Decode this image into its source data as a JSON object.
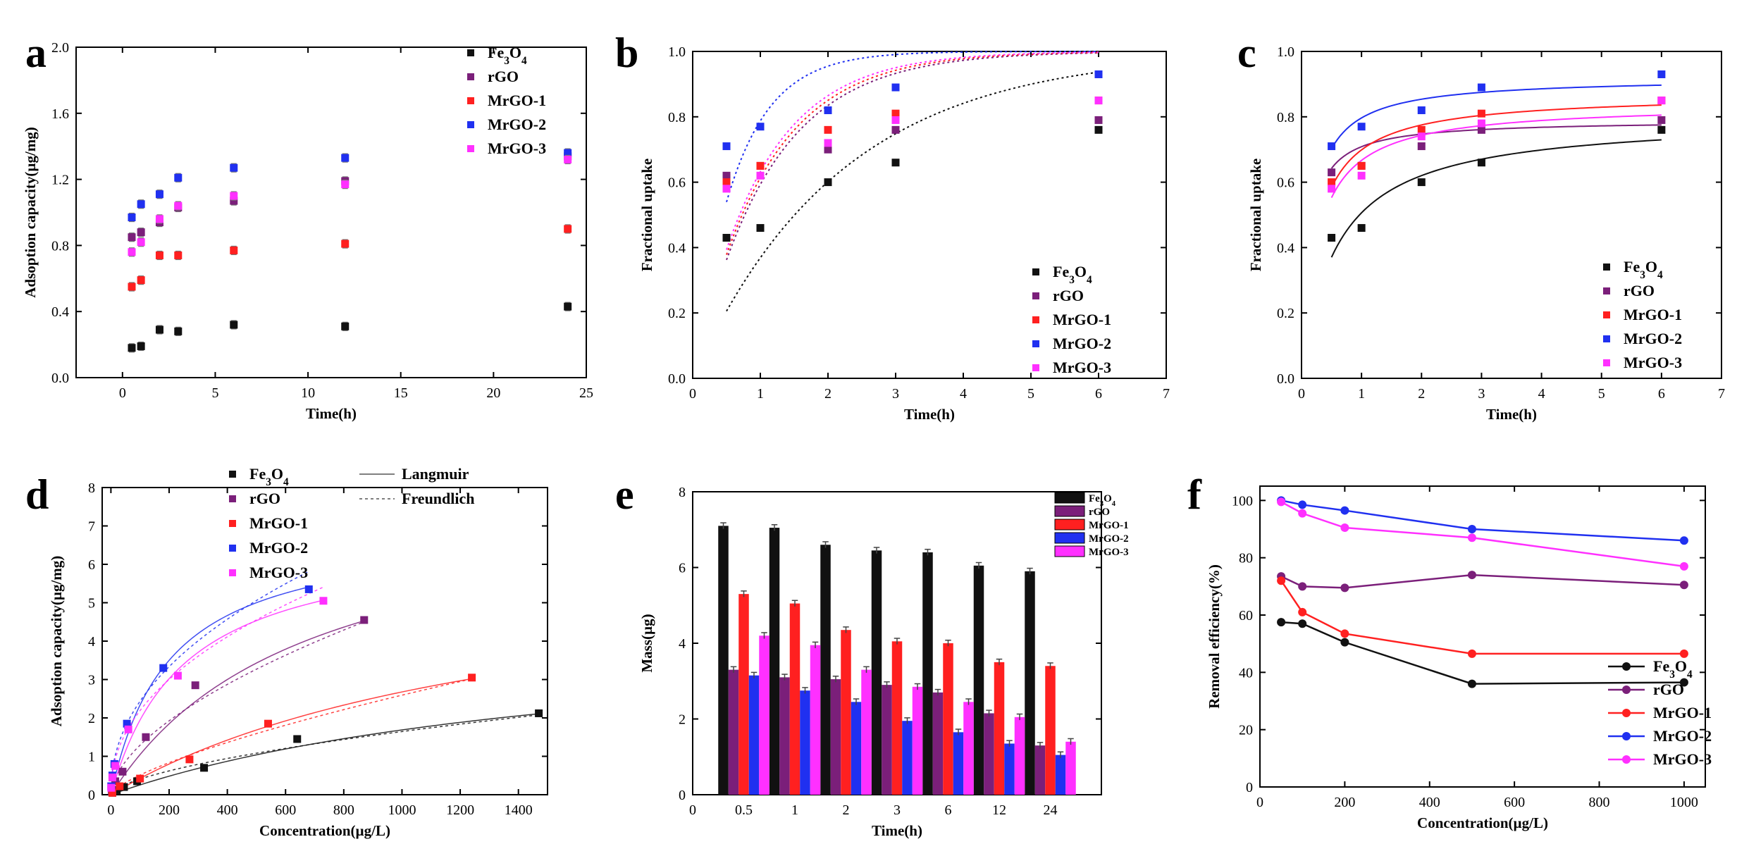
{
  "colors": {
    "Fe3O4": "#111111",
    "rGO": "#7b1f7a",
    "MrGO-1": "#ff2020",
    "MrGO-2": "#2030f0",
    "MrGO-3": "#ff30ff"
  },
  "chart_data": [
    {
      "id": "a",
      "panel": "a",
      "type": "scatter",
      "xlabel": "Time(h)",
      "ylabel": "Adsoption capacity(µg/mg)",
      "xlim": [
        -2.5,
        25
      ],
      "ylim": [
        0,
        2.0
      ],
      "xticks": [
        0,
        5,
        10,
        15,
        20,
        25
      ],
      "yticks": [
        0.0,
        0.4,
        0.8,
        1.2,
        1.6,
        2.0
      ],
      "ytick_decimals": 1,
      "error_bars": true,
      "legend": "top-right",
      "x": [
        0.5,
        1,
        2,
        3,
        6,
        12,
        24
      ],
      "series": [
        {
          "name": "Fe3O4",
          "values": [
            0.18,
            0.19,
            0.29,
            0.28,
            0.32,
            0.31,
            0.43
          ]
        },
        {
          "name": "rGO",
          "values": [
            0.85,
            0.88,
            0.94,
            1.03,
            1.07,
            1.19,
            1.34
          ]
        },
        {
          "name": "MrGO-1",
          "values": [
            0.55,
            0.59,
            0.74,
            0.74,
            0.77,
            0.81,
            0.9
          ]
        },
        {
          "name": "MrGO-2",
          "values": [
            0.97,
            1.05,
            1.11,
            1.21,
            1.27,
            1.33,
            1.36
          ]
        },
        {
          "name": "MrGO-3",
          "values": [
            0.76,
            0.82,
            0.96,
            1.04,
            1.1,
            1.17,
            1.32
          ]
        }
      ]
    },
    {
      "id": "b",
      "panel": "b",
      "type": "scatter",
      "xlabel": "Time(h)",
      "ylabel": "Fractional uptake",
      "xlim": [
        0,
        7
      ],
      "ylim": [
        0,
        1.0
      ],
      "xticks": [
        0,
        1,
        2,
        3,
        4,
        5,
        6,
        7
      ],
      "yticks": [
        0.0,
        0.2,
        0.4,
        0.6,
        0.8,
        1.0
      ],
      "ytick_decimals": 1,
      "legend": "bottom-right",
      "fit": "pseudo-first-order (dotted)",
      "x": [
        0.5,
        1,
        2,
        3,
        6
      ],
      "series": [
        {
          "name": "Fe3O4",
          "values": [
            0.43,
            0.46,
            0.6,
            0.66,
            0.76
          ],
          "fit_k": 0.46
        },
        {
          "name": "rGO",
          "values": [
            0.62,
            0.65,
            0.7,
            0.76,
            0.79
          ],
          "fit_k": 0.9
        },
        {
          "name": "MrGO-1",
          "values": [
            0.6,
            0.65,
            0.76,
            0.81,
            0.85
          ],
          "fit_k": 0.95
        },
        {
          "name": "MrGO-2",
          "values": [
            0.71,
            0.77,
            0.82,
            0.89,
            0.93
          ],
          "fit_k": 1.55
        },
        {
          "name": "MrGO-3",
          "values": [
            0.58,
            0.62,
            0.72,
            0.79,
            0.85
          ],
          "fit_k": 1.0
        }
      ]
    },
    {
      "id": "c",
      "panel": "c",
      "type": "scatter",
      "xlabel": "Time(h)",
      "ylabel": "Fractional uptake",
      "xlim": [
        0,
        7
      ],
      "ylim": [
        0,
        1.0
      ],
      "xticks": [
        0,
        1,
        2,
        3,
        4,
        5,
        6,
        7
      ],
      "yticks": [
        0.0,
        0.2,
        0.4,
        0.6,
        0.8,
        1.0
      ],
      "ytick_decimals": 1,
      "legend": "bottom-right",
      "fit": "pseudo-second-order (solid)",
      "x": [
        0.5,
        1,
        2,
        3,
        6
      ],
      "series": [
        {
          "name": "Fe3O4",
          "values": [
            0.43,
            0.46,
            0.6,
            0.66,
            0.76
          ],
          "fit": {
            "a": 0.8,
            "b": 0.58
          }
        },
        {
          "name": "rGO",
          "values": [
            0.63,
            0.65,
            0.71,
            0.76,
            0.79
          ],
          "fit": {
            "a": 0.79,
            "b": 0.115
          }
        },
        {
          "name": "MrGO-1",
          "values": [
            0.6,
            0.65,
            0.76,
            0.81,
            0.85
          ],
          "fit": {
            "a": 0.87,
            "b": 0.245
          }
        },
        {
          "name": "MrGO-2",
          "values": [
            0.71,
            0.77,
            0.82,
            0.89,
            0.93
          ],
          "fit": {
            "a": 0.92,
            "b": 0.155
          }
        },
        {
          "name": "MrGO-3",
          "values": [
            0.58,
            0.62,
            0.74,
            0.78,
            0.85
          ],
          "fit": {
            "a": 0.84,
            "b": 0.26
          }
        }
      ]
    },
    {
      "id": "d",
      "panel": "d",
      "type": "scatter",
      "xlabel": "Concentration(µg/L)",
      "ylabel": "Adsoption capacity(µg/mg)",
      "xlim": [
        -30,
        1500
      ],
      "ylim": [
        0,
        8
      ],
      "xticks": [
        0,
        200,
        400,
        600,
        800,
        1000,
        1200,
        1400
      ],
      "yticks": [
        0,
        1,
        2,
        3,
        4,
        5,
        6,
        7,
        8
      ],
      "ytick_decimals": 0,
      "legend": "top-center",
      "fit_legend": {
        "langmuir": "Langmuir",
        "freundlich": "Freundlich"
      },
      "series": [
        {
          "name": "Fe3O4",
          "x": [
            5,
            20,
            45,
            90,
            320,
            640,
            1470
          ],
          "values": [
            0.05,
            0.12,
            0.2,
            0.35,
            0.7,
            1.45,
            2.12
          ],
          "langmuir": {
            "qm": 4.5,
            "K": 0.0006
          },
          "freundlich": {
            "kf": 0.025,
            "n": 1.65
          }
        },
        {
          "name": "rGO",
          "x": [
            3,
            15,
            40,
            120,
            290,
            870
          ],
          "values": [
            0.1,
            0.35,
            0.6,
            1.5,
            2.85,
            4.55
          ],
          "langmuir": {
            "qm": 8.0,
            "K": 0.0015
          },
          "freundlich": {
            "kf": 0.09,
            "n": 1.73
          }
        },
        {
          "name": "MrGO-1",
          "x": [
            5,
            30,
            100,
            270,
            540,
            1240
          ],
          "values": [
            0.05,
            0.22,
            0.42,
            0.92,
            1.85,
            3.05
          ],
          "langmuir": {
            "qm": 6.5,
            "K": 0.0007
          },
          "freundlich": {
            "kf": 0.02,
            "n": 1.42
          }
        },
        {
          "name": "MrGO-2",
          "x": [
            1,
            5,
            12,
            55,
            180,
            680
          ],
          "values": [
            0.22,
            0.5,
            0.8,
            1.85,
            3.3,
            5.35
          ],
          "langmuir": {
            "qm": 7.0,
            "K": 0.005
          },
          "freundlich": {
            "kf": 0.3,
            "n": 2.2
          }
        },
        {
          "name": "MrGO-3",
          "x": [
            1,
            5,
            15,
            60,
            230,
            730
          ],
          "values": [
            0.18,
            0.45,
            0.75,
            1.7,
            3.1,
            5.05
          ],
          "langmuir": {
            "qm": 6.8,
            "K": 0.004
          },
          "freundlich": {
            "kf": 0.27,
            "n": 2.2
          }
        }
      ]
    },
    {
      "id": "e",
      "panel": "e",
      "type": "bar",
      "xlabel": "Time(h)",
      "ylabel": "Mass(µg)",
      "ylim": [
        0,
        8
      ],
      "yticks": [
        0,
        2,
        4,
        6,
        8
      ],
      "ytick_decimals": 0,
      "x_zero_label": "0",
      "legend": "top-right",
      "categories": [
        "0.5",
        "1",
        "2",
        "3",
        "6",
        "12",
        "24"
      ],
      "series": [
        {
          "name": "Fe3O4",
          "values": [
            7.1,
            7.05,
            6.6,
            6.45,
            6.4,
            6.05,
            5.9
          ]
        },
        {
          "name": "rGO",
          "values": [
            3.3,
            3.1,
            3.05,
            2.9,
            2.7,
            2.15,
            1.3
          ]
        },
        {
          "name": "MrGO-1",
          "values": [
            5.3,
            5.05,
            4.35,
            4.05,
            4.0,
            3.5,
            3.4
          ]
        },
        {
          "name": "MrGO-2",
          "values": [
            3.15,
            2.75,
            2.45,
            1.95,
            1.65,
            1.35,
            1.05
          ]
        },
        {
          "name": "MrGO-3",
          "values": [
            4.2,
            3.95,
            3.3,
            2.85,
            2.45,
            2.05,
            1.4
          ]
        }
      ]
    },
    {
      "id": "f",
      "panel": "f",
      "type": "line",
      "xlabel": "Concentration(µg/L)",
      "ylabel": "Removal efficiency(%)",
      "xlim": [
        0,
        1050
      ],
      "ylim": [
        0,
        105
      ],
      "xticks": [
        0,
        200,
        400,
        600,
        800,
        1000
      ],
      "yticks": [
        0,
        20,
        40,
        60,
        80,
        100
      ],
      "ytick_decimals": 0,
      "legend": "bottom-right",
      "x": [
        50,
        100,
        200,
        500,
        1000
      ],
      "series": [
        {
          "name": "Fe3O4",
          "values": [
            57.5,
            57.0,
            50.5,
            36.0,
            36.5
          ]
        },
        {
          "name": "rGO",
          "values": [
            73.5,
            70.0,
            69.5,
            74.0,
            70.5
          ]
        },
        {
          "name": "MrGO-1",
          "values": [
            72.0,
            61.0,
            53.5,
            46.5,
            46.5
          ]
        },
        {
          "name": "MrGO-2",
          "values": [
            100.0,
            98.5,
            96.5,
            90.0,
            86.0
          ]
        },
        {
          "name": "MrGO-3",
          "values": [
            99.5,
            95.5,
            90.5,
            87.0,
            77.0
          ]
        }
      ]
    }
  ]
}
